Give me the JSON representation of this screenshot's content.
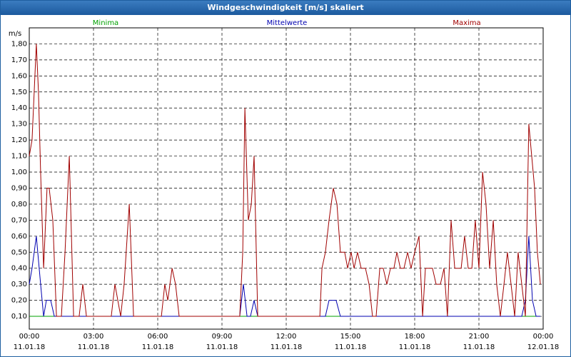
{
  "chart_data": {
    "type": "line",
    "title": "Windgeschwindigkeit [m/s] skaliert",
    "y_label": "m/s",
    "xlim": [
      0,
      24
    ],
    "xticks": [
      {
        "value": 0,
        "label": "00:00\n11.01.18"
      },
      {
        "value": 3,
        "label": "03:00\n11.01.18"
      },
      {
        "value": 6,
        "label": "06:00\n11.01.18"
      },
      {
        "value": 9,
        "label": "09:00\n11.01.18"
      },
      {
        "value": 12,
        "label": "12:00\n11.01.18"
      },
      {
        "value": 15,
        "label": "15:00\n11.01.18"
      },
      {
        "value": 18,
        "label": "18:00\n11.01.18"
      },
      {
        "value": 21,
        "label": "21:00\n11.01.18"
      },
      {
        "value": 24,
        "label": "00:00\n12.01.18"
      }
    ],
    "ylim": [
      0.02,
      1.9
    ],
    "yticks": [
      {
        "value": 0.1,
        "label": "0,10"
      },
      {
        "value": 0.2,
        "label": "0,20"
      },
      {
        "value": 0.3,
        "label": "0,30"
      },
      {
        "value": 0.4,
        "label": "0,40"
      },
      {
        "value": 0.5,
        "label": "0,50"
      },
      {
        "value": 0.6,
        "label": "0,60"
      },
      {
        "value": 0.7,
        "label": "0,70"
      },
      {
        "value": 0.8,
        "label": "0,80"
      },
      {
        "value": 0.9,
        "label": "0,90"
      },
      {
        "value": 1.0,
        "label": "1,00"
      },
      {
        "value": 1.1,
        "label": "1,10"
      },
      {
        "value": 1.2,
        "label": "1,20"
      },
      {
        "value": 1.3,
        "label": "1,30"
      },
      {
        "value": 1.4,
        "label": "1,40"
      },
      {
        "value": 1.5,
        "label": "1,50"
      },
      {
        "value": 1.6,
        "label": "1,60"
      },
      {
        "value": 1.7,
        "label": "1,70"
      },
      {
        "value": 1.8,
        "label": "1,80"
      }
    ],
    "grid": true,
    "series": [
      {
        "name": "Minima",
        "color": "#00a000",
        "x": [
          0,
          23.87
        ],
        "values": [
          0.1,
          0.1
        ]
      },
      {
        "name": "Mittelwerte",
        "color": "#0000b0",
        "x": [
          0,
          0.13,
          0.33,
          0.53,
          0.67,
          0.8,
          1,
          1.17,
          9.83,
          10,
          10.17,
          10.33,
          10.5,
          10.67,
          13.83,
          14,
          14.33,
          14.53,
          23,
          23.17,
          23.33,
          23.5,
          23.67,
          23.87
        ],
        "values": [
          0.3,
          0.4,
          0.6,
          0.3,
          0.1,
          0.2,
          0.2,
          0.1,
          0.1,
          0.3,
          0.1,
          0.1,
          0.2,
          0.1,
          0.1,
          0.2,
          0.2,
          0.1,
          0.1,
          0.2,
          0.6,
          0.2,
          0.1,
          0.1
        ]
      },
      {
        "name": "Maxima",
        "color": "#a00000",
        "x": [
          0,
          0.13,
          0.33,
          0.43,
          0.53,
          0.67,
          0.83,
          0.93,
          1.1,
          1.27,
          1.5,
          1.67,
          1.87,
          2.07,
          2.33,
          2.5,
          2.67,
          3.83,
          4,
          4.27,
          4.43,
          4.67,
          4.87,
          6.17,
          6.33,
          6.47,
          6.67,
          6.83,
          7,
          9.83,
          9.97,
          10.07,
          10.23,
          10.37,
          10.5,
          10.67,
          13.57,
          13.67,
          13.83,
          14,
          14.2,
          14.37,
          14.53,
          14.73,
          14.87,
          15.03,
          15.17,
          15.33,
          15.5,
          15.7,
          15.87,
          16.03,
          16.2,
          16.37,
          16.53,
          16.7,
          16.87,
          17.03,
          17.17,
          17.33,
          17.5,
          17.67,
          17.83,
          18,
          18.2,
          18.37,
          18.5,
          18.83,
          19,
          19.2,
          19.37,
          19.53,
          19.7,
          19.87,
          20.17,
          20.33,
          20.5,
          20.67,
          20.83,
          21,
          21.17,
          21.33,
          21.5,
          21.67,
          21.83,
          22,
          22.17,
          22.33,
          22.5,
          22.67,
          22.83,
          23,
          23.17,
          23.33,
          23.6,
          23.73,
          23.87
        ],
        "values": [
          1.1,
          1.2,
          1.8,
          1.5,
          1.0,
          0.4,
          0.9,
          0.9,
          0.7,
          0.1,
          0.1,
          0.5,
          1.1,
          0.1,
          0.1,
          0.3,
          0.1,
          0.1,
          0.3,
          0.1,
          0.3,
          0.8,
          0.1,
          0.1,
          0.3,
          0.2,
          0.4,
          0.3,
          0.1,
          0.1,
          0.5,
          1.4,
          0.7,
          0.8,
          1.1,
          0.1,
          0.1,
          0.4,
          0.5,
          0.7,
          0.9,
          0.8,
          0.5,
          0.5,
          0.4,
          0.5,
          0.4,
          0.5,
          0.4,
          0.4,
          0.3,
          0.1,
          0.1,
          0.4,
          0.4,
          0.3,
          0.4,
          0.4,
          0.5,
          0.4,
          0.4,
          0.5,
          0.4,
          0.5,
          0.6,
          0.1,
          0.4,
          0.4,
          0.3,
          0.3,
          0.4,
          0.1,
          0.7,
          0.4,
          0.4,
          0.6,
          0.4,
          0.4,
          0.7,
          0.4,
          1.0,
          0.8,
          0.4,
          0.7,
          0.3,
          0.1,
          0.3,
          0.5,
          0.3,
          0.1,
          0.5,
          0.3,
          0.1,
          1.3,
          0.9,
          0.5,
          0.3
        ]
      }
    ]
  }
}
